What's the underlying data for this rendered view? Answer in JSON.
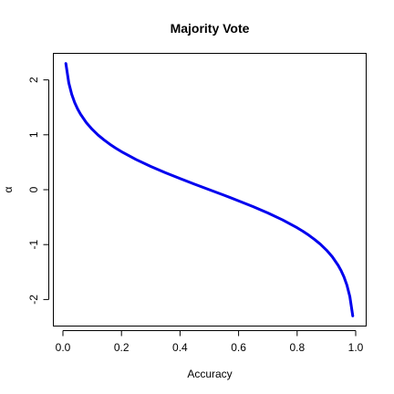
{
  "chart_data": {
    "type": "line",
    "title": "Majority Vote",
    "xlabel": "Accuracy",
    "ylabel": "α",
    "xlim": [
      0,
      1
    ],
    "ylim": [
      -2.4,
      2.4
    ],
    "grid": false,
    "legend": "none",
    "x_ticks": [
      0.0,
      0.2,
      0.4,
      0.6,
      0.8,
      1.0
    ],
    "x_tick_labels": [
      "0.0",
      "0.2",
      "0.4",
      "0.6",
      "0.8",
      "1.0"
    ],
    "y_ticks": [
      -2,
      -1,
      0,
      1,
      2
    ],
    "y_tick_labels": [
      "-2",
      "-1",
      "0",
      "1",
      "2"
    ],
    "series": [
      {
        "color": "#0000ee",
        "x": [
          0.01,
          0.02,
          0.03,
          0.04,
          0.05,
          0.06,
          0.08,
          0.1,
          0.12,
          0.14,
          0.16,
          0.18,
          0.2,
          0.25,
          0.3,
          0.35,
          0.4,
          0.45,
          0.5,
          0.55,
          0.6,
          0.65,
          0.7,
          0.75,
          0.8,
          0.82,
          0.84,
          0.86,
          0.88,
          0.9,
          0.92,
          0.94,
          0.95,
          0.96,
          0.97,
          0.98,
          0.99
        ],
        "y": [
          2.298,
          1.946,
          1.738,
          1.589,
          1.472,
          1.376,
          1.221,
          1.099,
          0.996,
          0.908,
          0.829,
          0.758,
          0.693,
          0.549,
          0.424,
          0.31,
          0.203,
          0.1,
          0.0,
          -0.1,
          -0.203,
          -0.31,
          -0.424,
          -0.549,
          -0.693,
          -0.758,
          -0.829,
          -0.908,
          -0.996,
          -1.099,
          -1.221,
          -1.376,
          -1.472,
          -1.589,
          -1.738,
          -1.946,
          -2.298
        ]
      }
    ]
  }
}
